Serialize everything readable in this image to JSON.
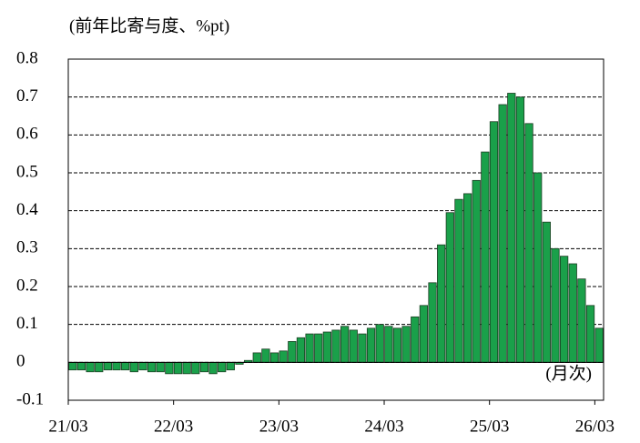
{
  "chart_data": {
    "type": "bar",
    "y_axis_label": "(前年比寄与度、%pt)",
    "annotation": "(月次)",
    "color": "#1aa04a",
    "grid": true,
    "ylim": [
      -0.1,
      0.8
    ],
    "yticks": [
      -0.1,
      0,
      0.1,
      0.2,
      0.3,
      0.4,
      0.5,
      0.6,
      0.7,
      0.8
    ],
    "categories": [
      "21/03",
      null,
      null,
      null,
      null,
      null,
      null,
      null,
      null,
      null,
      null,
      null,
      "22/03",
      null,
      null,
      null,
      null,
      null,
      null,
      null,
      null,
      null,
      null,
      null,
      "23/03",
      null,
      null,
      null,
      null,
      null,
      null,
      null,
      null,
      null,
      null,
      null,
      "24/03",
      null,
      null,
      null,
      null,
      null,
      null,
      null,
      null,
      null,
      null,
      null,
      "25/03",
      null,
      null,
      null,
      null,
      null,
      null,
      null,
      null,
      null,
      null,
      null,
      "26/03"
    ],
    "values": [
      -0.02,
      -0.02,
      -0.025,
      -0.025,
      -0.02,
      -0.02,
      -0.02,
      -0.025,
      -0.02,
      -0.025,
      -0.025,
      -0.03,
      -0.03,
      -0.03,
      -0.03,
      -0.025,
      -0.03,
      -0.025,
      -0.02,
      -0.005,
      0.005,
      0.025,
      0.035,
      0.025,
      0.03,
      0.055,
      0.065,
      0.075,
      0.075,
      0.08,
      0.085,
      0.095,
      0.085,
      0.075,
      0.09,
      0.1,
      0.095,
      0.09,
      0.095,
      0.12,
      0.15,
      0.21,
      0.31,
      0.395,
      0.43,
      0.445,
      0.48,
      0.555,
      0.635,
      0.68,
      0.71,
      0.7,
      0.63,
      0.5,
      0.37,
      0.3,
      0.28,
      0.26,
      0.22,
      0.15,
      0.09
    ]
  }
}
